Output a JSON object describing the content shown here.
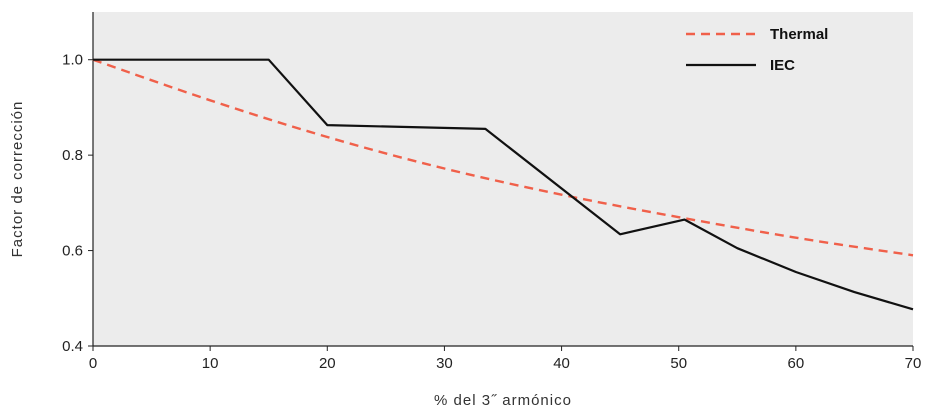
{
  "chart_data": {
    "type": "line",
    "xlabel": "% del 3˝ armónico",
    "ylabel": "Factor de corrección",
    "xlim": [
      0,
      70
    ],
    "ylim": [
      0.4,
      1.1
    ],
    "x_ticks": [
      0,
      10,
      20,
      30,
      40,
      50,
      60,
      70
    ],
    "y_ticks": [
      0.4,
      0.6,
      0.8,
      1.0
    ],
    "x_tick_labels": [
      "0",
      "10",
      "20",
      "30",
      "40",
      "50",
      "60",
      "70"
    ],
    "y_tick_labels": [
      "0.4",
      "0.6",
      "0.8",
      "1.0"
    ],
    "grid": false,
    "legend_position": "top-right",
    "series": [
      {
        "name": "Thermal",
        "style": "dashed",
        "color": "#f0604a",
        "x": [
          0,
          10,
          20,
          30,
          40,
          50,
          60,
          70
        ],
        "y": [
          1.0,
          0.915,
          0.838,
          0.772,
          0.717,
          0.67,
          0.627,
          0.59
        ]
      },
      {
        "name": "IEC",
        "style": "solid",
        "color": "#111111",
        "x": [
          0,
          15,
          20,
          33.5,
          45,
          50.5,
          55,
          60,
          65,
          70
        ],
        "y": [
          1.0,
          1.0,
          0.863,
          0.855,
          0.634,
          0.665,
          0.605,
          0.555,
          0.513,
          0.477
        ]
      }
    ]
  }
}
